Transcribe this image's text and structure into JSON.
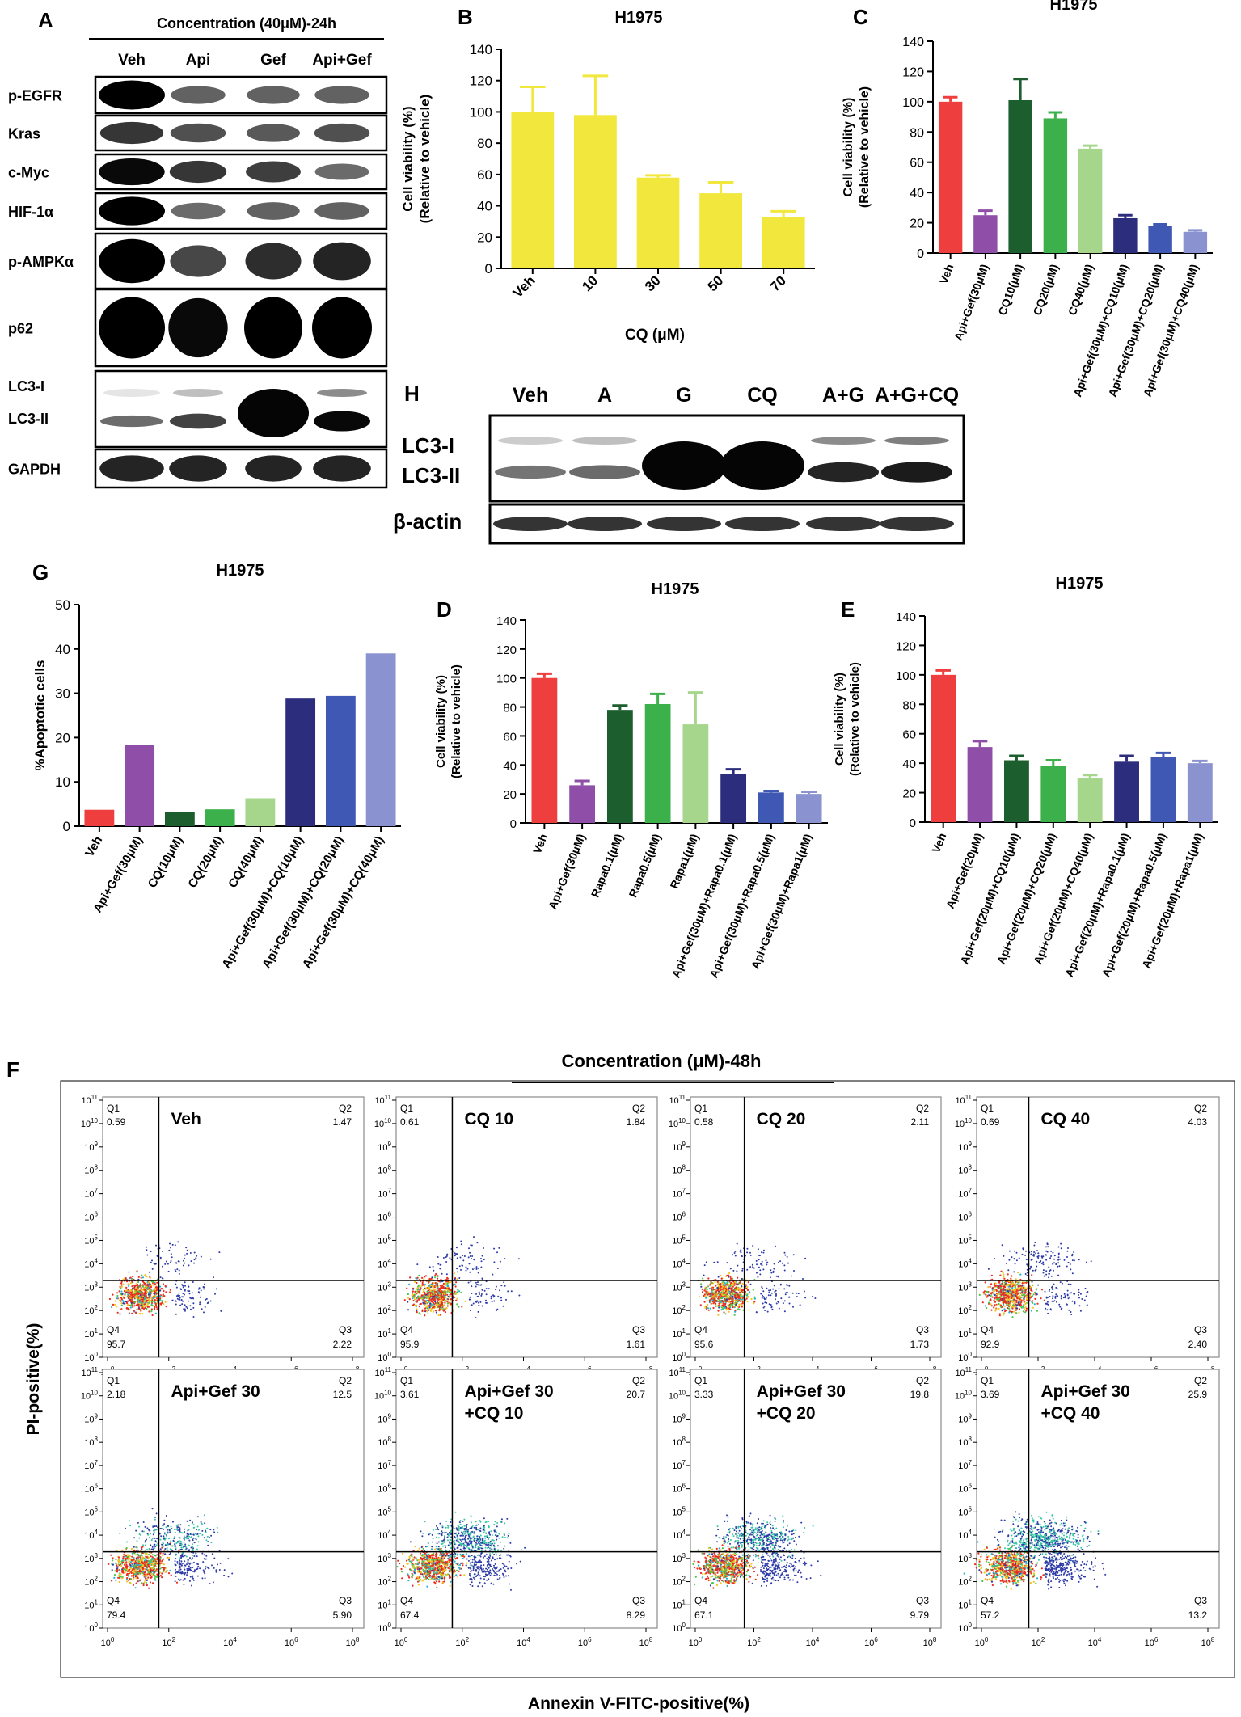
{
  "western_a": {
    "panel": "A",
    "header": "Concentration (40μM)-24h",
    "lanes": [
      "Veh",
      "Api",
      "Gef",
      "Api+Gef"
    ],
    "rows": [
      {
        "label": "p-EGFR",
        "intensity": [
          1.0,
          0.45,
          0.45,
          0.45
        ]
      },
      {
        "label": "Kras",
        "intensity": [
          0.7,
          0.55,
          0.5,
          0.55
        ]
      },
      {
        "label": "c-Myc",
        "intensity": [
          0.95,
          0.7,
          0.65,
          0.4
        ]
      },
      {
        "label": "HIF-1α",
        "intensity": [
          1.0,
          0.4,
          0.45,
          0.45
        ]
      },
      {
        "label": "p-AMPKα",
        "intensity": [
          1.0,
          0.6,
          0.75,
          0.8
        ]
      },
      {
        "label": "p62",
        "intensity": [
          1.0,
          0.95,
          1.0,
          1.0
        ]
      },
      {
        "label_lines": [
          "LC3-I",
          "LC3-II"
        ],
        "lc3i": [
          0.1,
          0.25,
          1.0,
          0.45
        ],
        "lc3ii": [
          0.35,
          0.6,
          1.0,
          0.95
        ]
      },
      {
        "label": "GAPDH",
        "intensity": [
          0.8,
          0.8,
          0.8,
          0.8
        ]
      }
    ]
  },
  "western_h": {
    "panel": "H",
    "lanes": [
      "Veh",
      "A",
      "G",
      "CQ",
      "A+G",
      "A+G+CQ"
    ],
    "lc3_labels": [
      "LC3-I",
      "LC3-II"
    ],
    "loading_label": "β-actin",
    "lc3i": [
      0.2,
      0.25,
      0.95,
      1.0,
      0.45,
      0.5
    ],
    "lc3ii": [
      0.35,
      0.4,
      1.0,
      1.0,
      0.8,
      0.85
    ],
    "actin": [
      0.85,
      0.85,
      0.85,
      0.85,
      0.85,
      0.85
    ]
  },
  "flow": {
    "panel": "F",
    "header": "Concentration (μM)-48h",
    "ylabel": "PI-positive(%)",
    "xlabel": "Annexin V-FITC-positive(%)",
    "quadrants": [
      "Q1",
      "Q2",
      "Q3",
      "Q4"
    ],
    "x_ticks": [
      "10^0",
      "10^2",
      "10^4",
      "10^6",
      "10^8"
    ],
    "y_ticks": [
      "10^0",
      "10^1",
      "10^2",
      "10^3",
      "10^4",
      "10^5",
      "10^6",
      "10^7",
      "10^8",
      "10^9",
      "10^10",
      "10^11"
    ],
    "plots": [
      {
        "label": [
          "Veh"
        ],
        "q1": "0.59",
        "q2": "1.47",
        "q3": "2.22",
        "q4": "95.7"
      },
      {
        "label": [
          "CQ 10"
        ],
        "q1": "0.61",
        "q2": "1.84",
        "q3": "1.61",
        "q4": "95.9"
      },
      {
        "label": [
          "CQ 20"
        ],
        "q1": "0.58",
        "q2": "2.11",
        "q3": "1.73",
        "q4": "95.6"
      },
      {
        "label": [
          "CQ 40"
        ],
        "q1": "0.69",
        "q2": "4.03",
        "q3": "2.40",
        "q4": "92.9"
      },
      {
        "label": [
          "Api+Gef 30"
        ],
        "q1": "2.18",
        "q2": "12.5",
        "q3": "5.90",
        "q4": "79.4"
      },
      {
        "label": [
          "Api+Gef 30",
          "+CQ 10"
        ],
        "q1": "3.61",
        "q2": "20.7",
        "q3": "8.29",
        "q4": "67.4"
      },
      {
        "label": [
          "Api+Gef 30",
          "+CQ 20"
        ],
        "q1": "3.33",
        "q2": "19.8",
        "q3": "9.79",
        "q4": "67.1"
      },
      {
        "label": [
          "Api+Gef 30",
          "+CQ 40"
        ],
        "q1": "3.69",
        "q2": "25.9",
        "q3": "13.2",
        "q4": "57.2"
      }
    ]
  },
  "chart_data": [
    {
      "panel": "B",
      "type": "bar",
      "title": "H1975",
      "xlabel": "CQ (μM)",
      "ylabel": [
        "Cell viability (%)",
        "(Relative to vehicle)"
      ],
      "ylim": [
        0,
        140
      ],
      "yticks": [
        0,
        20,
        40,
        60,
        80,
        100,
        120,
        140
      ],
      "categories": [
        "Veh",
        "10",
        "30",
        "50",
        "70"
      ],
      "values": [
        100,
        98,
        58,
        48,
        33
      ],
      "errors": [
        16,
        25,
        1.5,
        7,
        3.5
      ],
      "colors": [
        "#f2e73c",
        "#f2e73c",
        "#f2e73c",
        "#f2e73c",
        "#f2e73c"
      ]
    },
    {
      "panel": "C",
      "type": "bar",
      "title": "H1975",
      "ylabel": [
        "Cell viability (%)",
        "(Relative to vehicle)"
      ],
      "ylim": [
        0,
        140
      ],
      "yticks": [
        0,
        20,
        40,
        60,
        80,
        100,
        120,
        140
      ],
      "categories": [
        "Veh",
        "Api+Gef(30μM)",
        "CQ10(μM)",
        "CQ20(μM)",
        "CQ40(μM)",
        "Api+Gef(30μM)+CQ10(μM)",
        "Api+Gef(30μM)+CQ20(μM)",
        "Api+Gef(30μM)+CQ40(μM)"
      ],
      "values": [
        100,
        25,
        101,
        89,
        69,
        23,
        18,
        14
      ],
      "errors": [
        3,
        3,
        14,
        4,
        2,
        2,
        1,
        1
      ],
      "colors": [
        "#ee3e3e",
        "#8f4ea8",
        "#1c5e2e",
        "#3cb04a",
        "#a5d68c",
        "#2d2d7d",
        "#3e58b4",
        "#8a93d0"
      ]
    },
    {
      "panel": "G",
      "type": "bar",
      "title": "H1975",
      "ylabel": [
        "%Apoptotic cells"
      ],
      "ylim": [
        0,
        50
      ],
      "yticks": [
        0,
        10,
        20,
        30,
        40,
        50
      ],
      "categories": [
        "Veh",
        "Api+Gef(30μM)",
        "CQ(10μM)",
        "CQ(20μM)",
        "CQ(40μM)",
        "Api+Gef(30μM)+CQ(10μM)",
        "Api+Gef(30μM)+CQ(20μM)",
        "Api+Gef(30μM)+CQ(40μM)"
      ],
      "values": [
        3.7,
        18.3,
        3.2,
        3.8,
        6.3,
        28.8,
        29.4,
        39.0
      ],
      "errors": [
        0,
        0,
        0,
        0,
        0,
        0,
        0,
        0
      ],
      "colors": [
        "#ee3e3e",
        "#8f4ea8",
        "#1c5e2e",
        "#3cb04a",
        "#a5d68c",
        "#2d2d7d",
        "#3e58b4",
        "#8a93d0"
      ]
    },
    {
      "panel": "D",
      "type": "bar",
      "title": "H1975",
      "ylabel": [
        "Cell viability (%)",
        "(Relative to vehicle)"
      ],
      "ylim": [
        0,
        140
      ],
      "yticks": [
        0,
        20,
        40,
        60,
        80,
        100,
        120,
        140
      ],
      "categories": [
        "Veh",
        "Api+Gef(30μM)",
        "Rapa0.1(μM)",
        "Rapa0.5(μM)",
        "Rapa1(μM)",
        "Api+Gef(30μM)+Rapa0.1(μM)",
        "Api+Gef(30μM)+Rapa0.5(μM)",
        "Api+Gef(30μM)+Rapa1(μM)"
      ],
      "values": [
        100,
        26,
        78,
        82,
        68,
        34,
        21,
        20
      ],
      "errors": [
        3,
        3,
        3,
        7,
        22,
        3,
        1,
        1.5
      ],
      "colors": [
        "#ee3e3e",
        "#8f4ea8",
        "#1c5e2e",
        "#3cb04a",
        "#a5d68c",
        "#2d2d7d",
        "#3e58b4",
        "#8a93d0"
      ]
    },
    {
      "panel": "E",
      "type": "bar",
      "title": "H1975",
      "ylabel": [
        "Cell viability (%)",
        "(Relative to vehicle)"
      ],
      "ylim": [
        0,
        140
      ],
      "yticks": [
        0,
        20,
        40,
        60,
        80,
        100,
        120,
        140
      ],
      "categories": [
        "Veh",
        "Api+Gef(20μM)",
        "Api+Gef(20μM)+CQ10(μM)",
        "Api+Gef(20μM)+CQ20(μM)",
        "Api+Gef(20μM)+CQ40(μM)",
        "Api+Gef(20μM)+Rapa0.1(μM)",
        "Api+Gef(20μM)+Rapa0.5(μM)",
        "Api+Gef(20μM)+Rapa1(μM)"
      ],
      "values": [
        100,
        51,
        42,
        38,
        30,
        41,
        44,
        40
      ],
      "errors": [
        3,
        4,
        3,
        4,
        2,
        4,
        3,
        1.5
      ],
      "colors": [
        "#ee3e3e",
        "#8f4ea8",
        "#1c5e2e",
        "#3cb04a",
        "#a5d68c",
        "#2d2d7d",
        "#3e58b4",
        "#8a93d0"
      ]
    }
  ]
}
